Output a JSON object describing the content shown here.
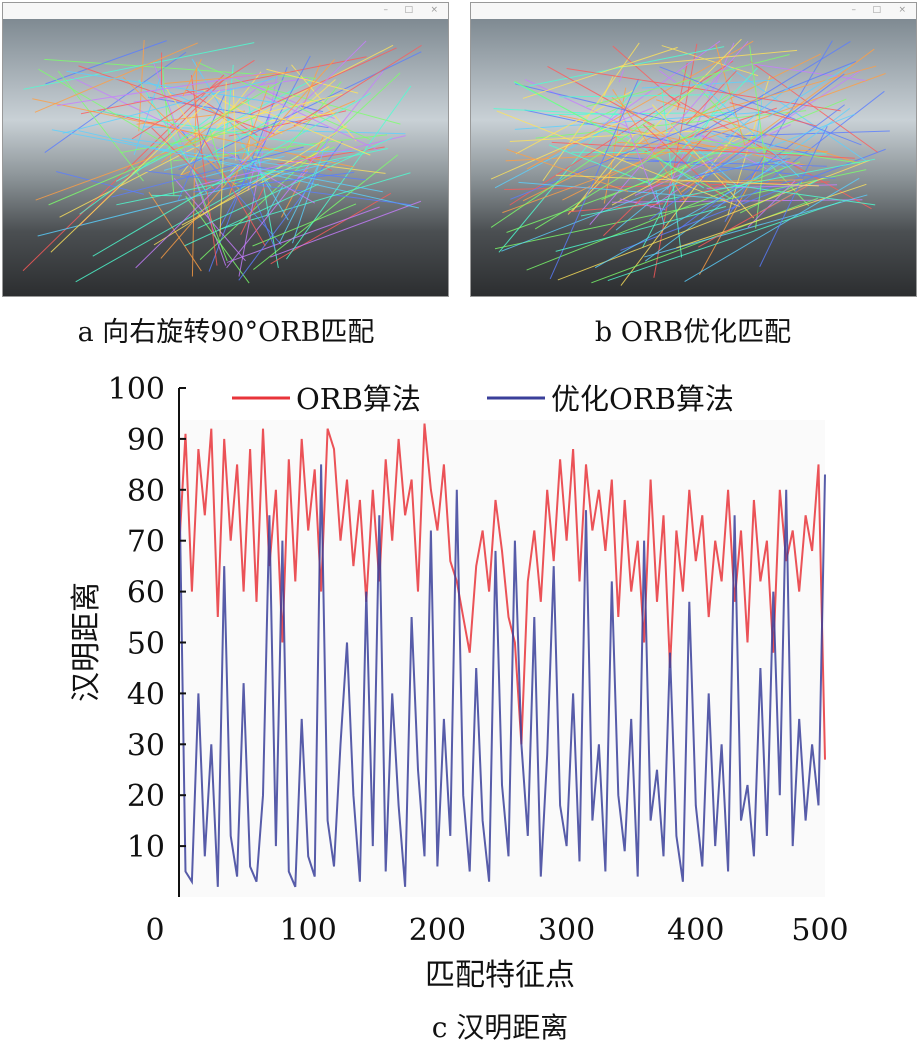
{
  "panels": [
    {
      "caption": "a 向右旋转90°ORB匹配"
    },
    {
      "caption": "b ORB优化匹配"
    }
  ],
  "chart_caption": "c 汉明距离",
  "colors": {
    "orb": "#e8343a",
    "optimized": "#3a3f9a"
  },
  "chart_data": {
    "type": "line",
    "title": "",
    "xlabel": "匹配特征点",
    "ylabel": "汉明距离",
    "xlim": [
      0,
      500
    ],
    "ylim": [
      0,
      100
    ],
    "xticks": [
      "0",
      "100",
      "200",
      "300",
      "400",
      "500"
    ],
    "yticks": [
      "10",
      "20",
      "30",
      "40",
      "50",
      "60",
      "70",
      "80",
      "90",
      "100"
    ],
    "legend": "top",
    "x_step": 5,
    "series": [
      {
        "name": "ORB算法",
        "color": "#e8343a",
        "values": [
          68,
          91,
          60,
          88,
          75,
          92,
          55,
          90,
          70,
          85,
          60,
          88,
          58,
          92,
          65,
          80,
          50,
          86,
          62,
          90,
          72,
          84,
          60,
          92,
          88,
          70,
          82,
          65,
          78,
          58,
          80,
          62,
          86,
          70,
          90,
          75,
          82,
          60,
          93,
          80,
          72,
          85,
          66,
          62,
          55,
          48,
          65,
          72,
          60,
          78,
          68,
          55,
          50,
          30,
          62,
          72,
          58,
          80,
          66,
          86,
          70,
          88,
          62,
          85,
          72,
          80,
          68,
          82,
          55,
          78,
          60,
          70,
          50,
          82,
          58,
          75,
          45,
          72,
          60,
          80,
          66,
          75,
          55,
          70,
          62,
          80,
          58,
          72,
          50,
          78,
          62,
          70,
          48,
          80,
          66,
          72,
          60,
          75,
          68,
          85,
          27
        ]
      },
      {
        "name": "优化ORB算法",
        "color": "#3a3f9a",
        "values": [
          86,
          5,
          3,
          40,
          8,
          30,
          2,
          65,
          12,
          4,
          42,
          6,
          3,
          20,
          75,
          10,
          70,
          5,
          2,
          35,
          8,
          4,
          85,
          15,
          6,
          30,
          50,
          20,
          3,
          60,
          10,
          75,
          5,
          40,
          18,
          2,
          55,
          25,
          8,
          72,
          6,
          35,
          12,
          80,
          20,
          5,
          45,
          15,
          3,
          68,
          22,
          8,
          70,
          30,
          12,
          55,
          4,
          28,
          65,
          18,
          10,
          40,
          7,
          76,
          15,
          30,
          5,
          62,
          20,
          9,
          35,
          4,
          70,
          15,
          25,
          8,
          48,
          12,
          3,
          58,
          18,
          6,
          40,
          10,
          30,
          5,
          75,
          15,
          22,
          8,
          45,
          12,
          60,
          20,
          80,
          10,
          35,
          15,
          30,
          18,
          83
        ]
      }
    ]
  }
}
